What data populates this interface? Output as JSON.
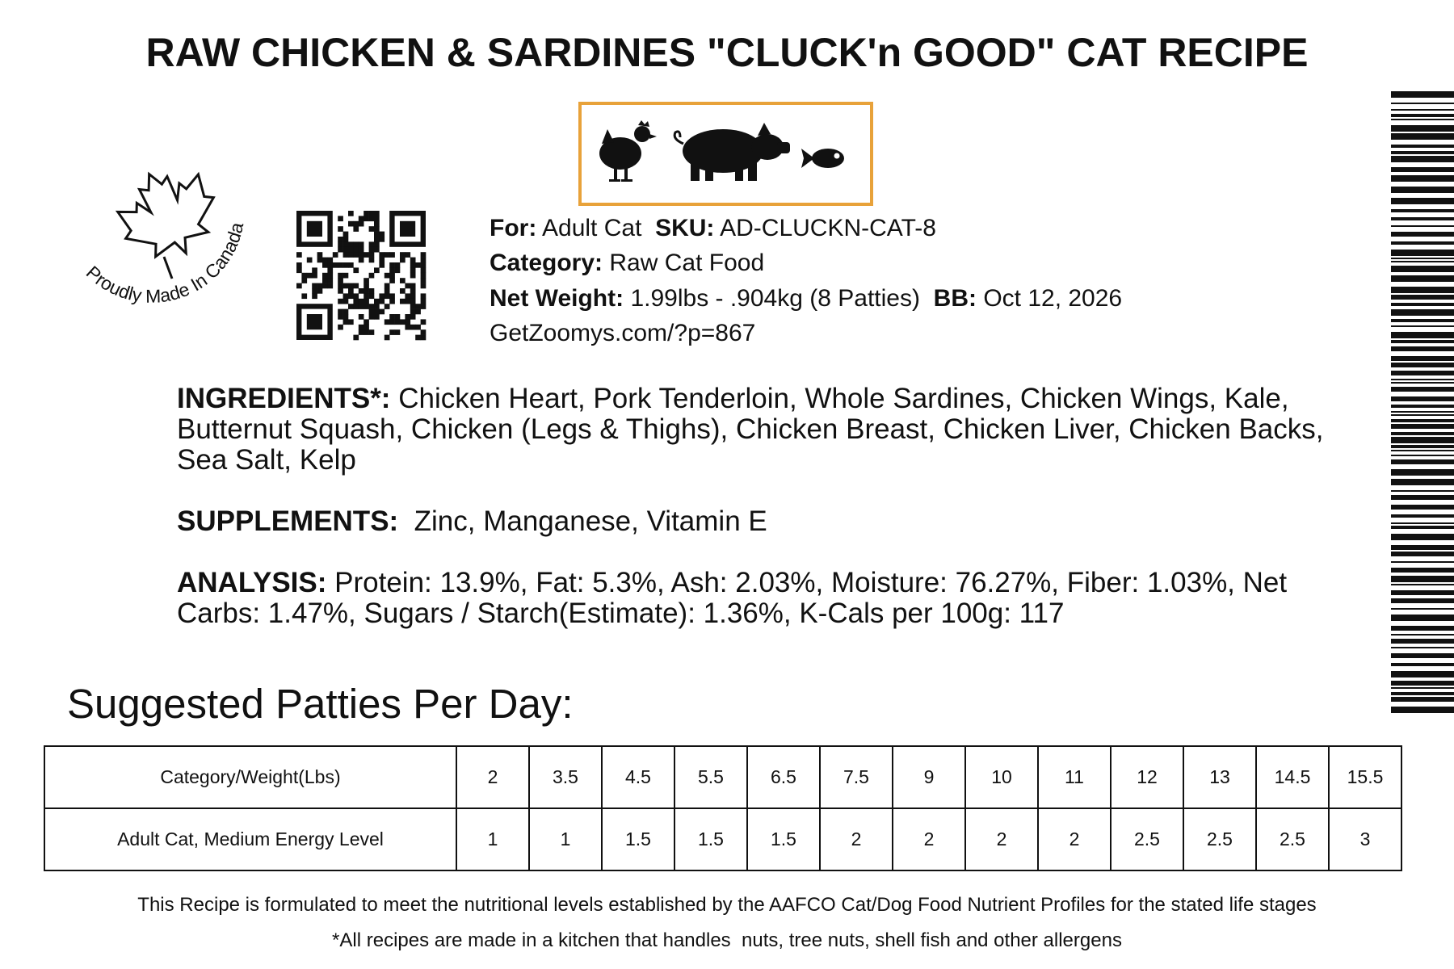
{
  "header": {
    "title": "RAW CHICKEN & SARDINES \"CLUCK'n GOOD\" CAT RECIPE"
  },
  "badge": {
    "text": "Proudly Made In Canada"
  },
  "info": {
    "for": {
      "label": "For:",
      "value": "Adult Cat"
    },
    "sku": {
      "label": "SKU:",
      "value": "AD-CLUCKN-CAT-8"
    },
    "category": {
      "label": "Category:",
      "value": "Raw Cat Food"
    },
    "net_weight": {
      "label": "Net Weight:",
      "value": "1.99lbs - .904kg (8 Patties)"
    },
    "bb": {
      "label": "BB:",
      "value": "Oct 12, 2026"
    },
    "url": "GetZoomys.com/?p=867"
  },
  "ingredients": {
    "label": "INGREDIENTS*:",
    "text": "Chicken Heart, Pork Tenderloin, Whole Sardines, Chicken Wings, Kale, Butternut Squash, Chicken (Legs & Thighs), Chicken Breast, Chicken Liver, Chicken Backs, Sea Salt, Kelp"
  },
  "supplements": {
    "label": "SUPPLEMENTS:",
    "text": "Zinc, Manganese, Vitamin E"
  },
  "analysis": {
    "label": "ANALYSIS:",
    "text": "Protein: 13.9%, Fat: 5.3%, Ash: 2.03%, Moisture: 76.27%, Fiber: 1.03%, Net Carbs: 1.47%, Sugars / Starch(Estimate): 1.36%, K-Cals per 100g: 117"
  },
  "feeding": {
    "title": "Suggested Patties Per Day:",
    "table": {
      "header": [
        "Category/Weight(Lbs)",
        2,
        3.5,
        4.5,
        5.5,
        6.5,
        7.5,
        9,
        10,
        11,
        12,
        13,
        14.5,
        15.5
      ],
      "rows": [
        [
          "Adult Cat, Medium Energy Level",
          1,
          1,
          1.5,
          1.5,
          1.5,
          2,
          2,
          2,
          2,
          2.5,
          2.5,
          2.5,
          3
        ]
      ]
    }
  },
  "footer": {
    "lines": [
      "This Recipe is formulated to meet the nutritional levels established by the AAFCO Cat/Dog Food Nutrient Profiles for the stated life stages",
      "*All recipes are made in a kitchen that handles  nuts, tree nuts, shell fish and other allergens"
    ]
  }
}
